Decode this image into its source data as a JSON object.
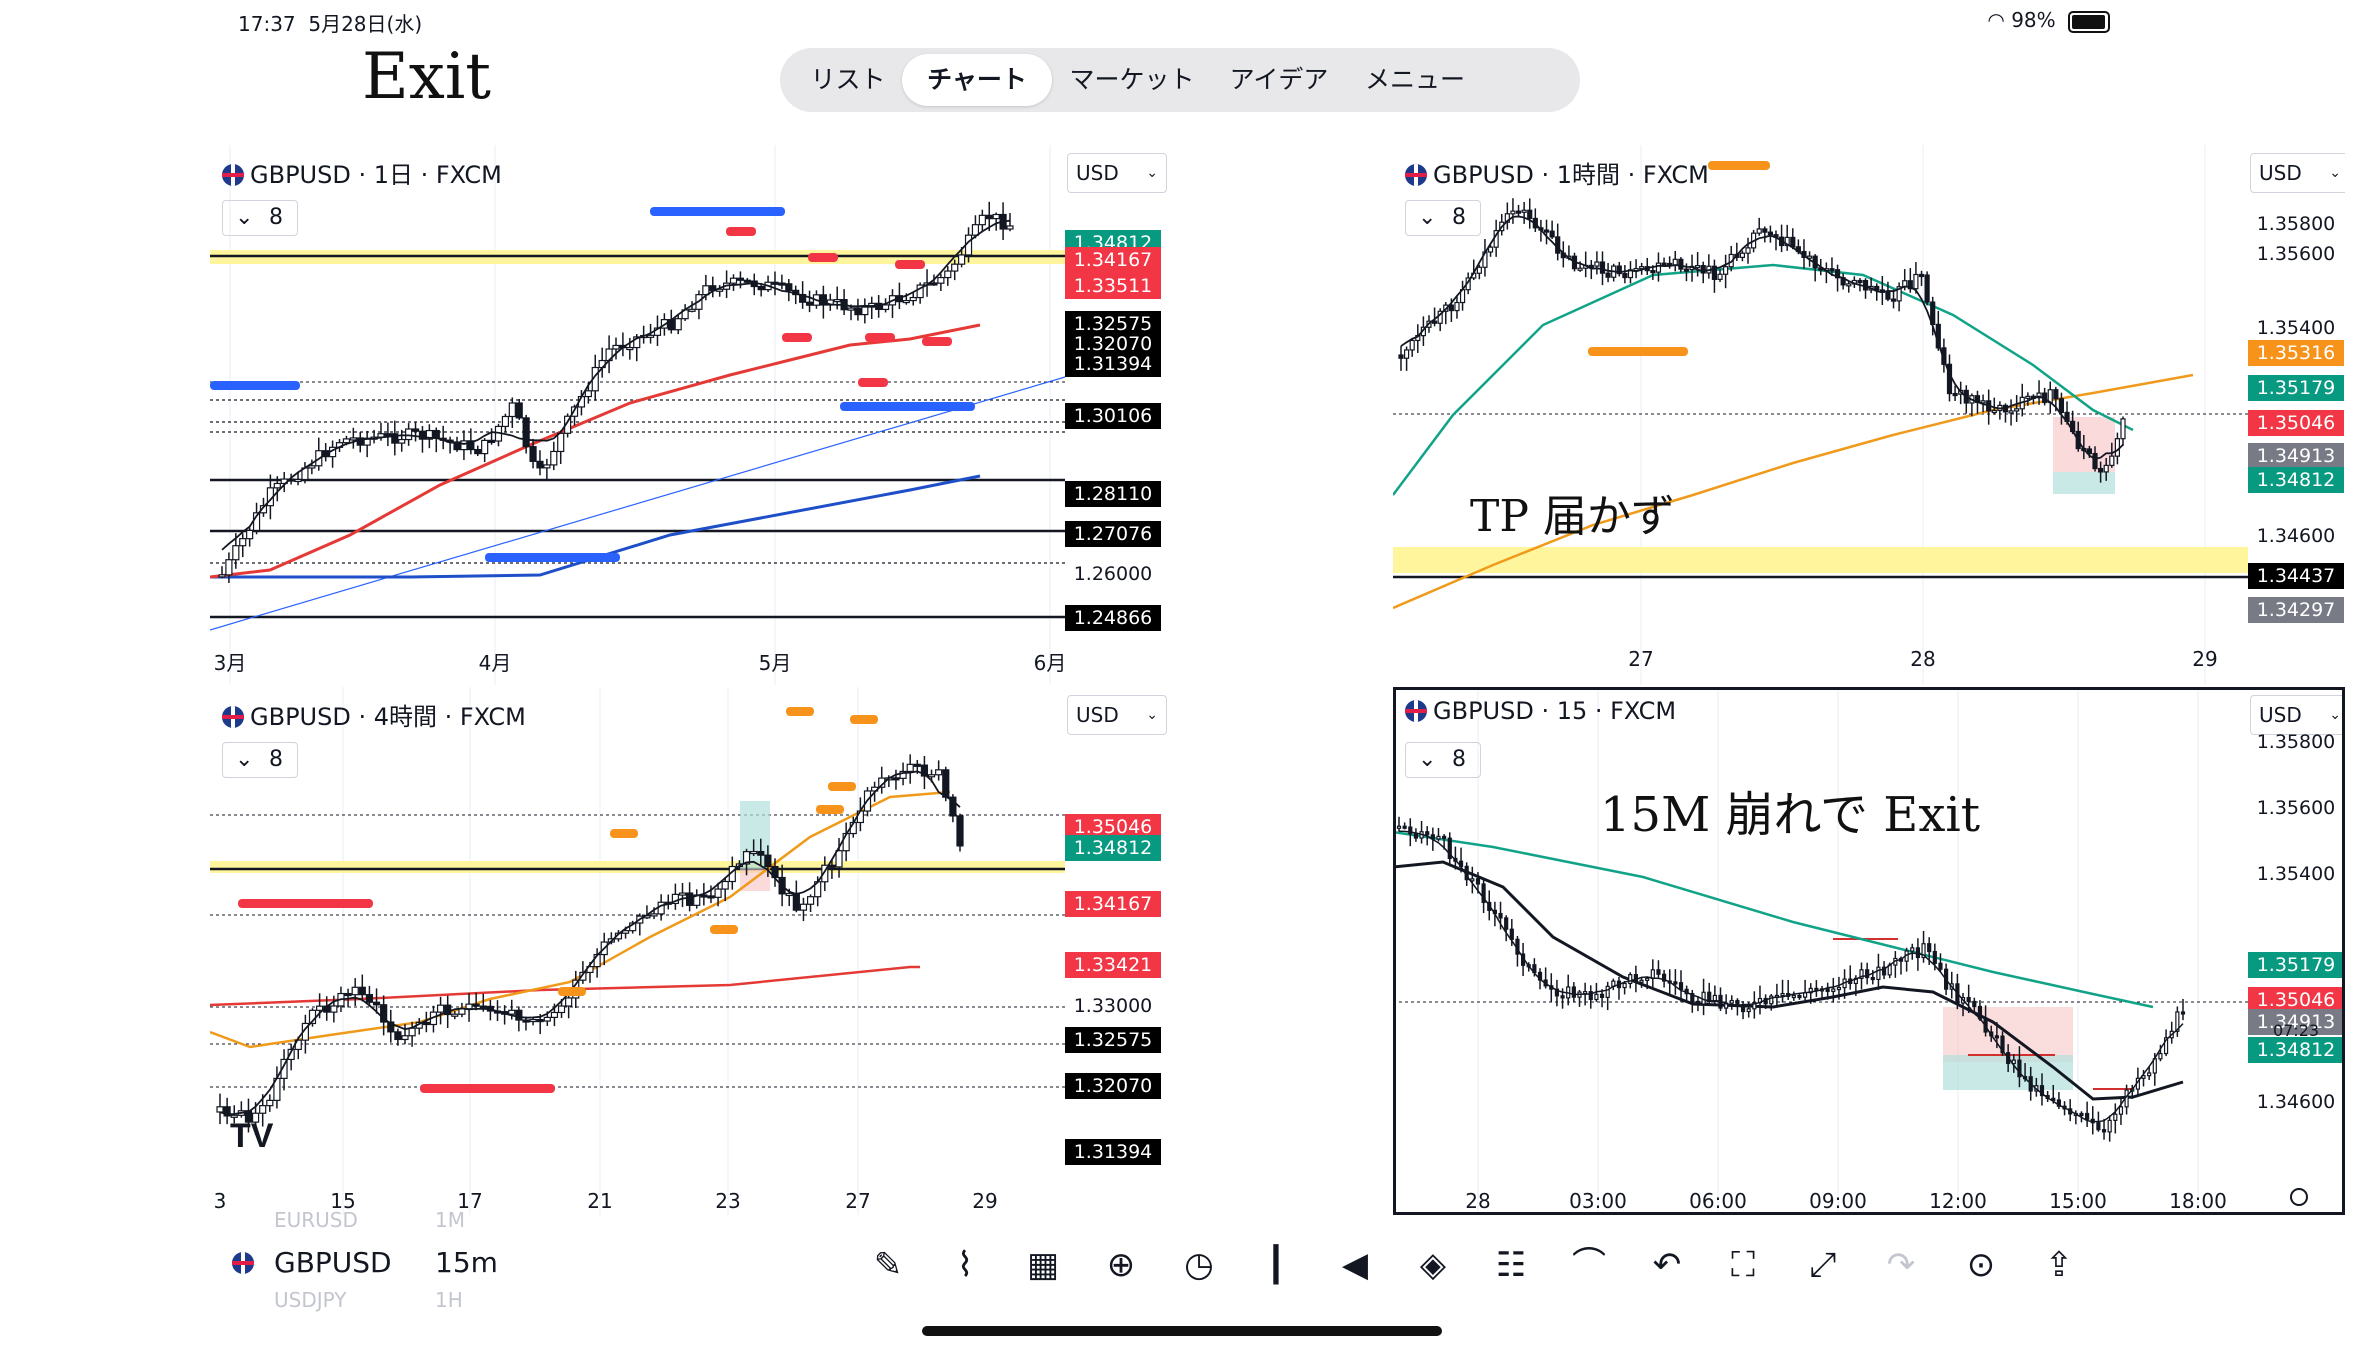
{
  "status": {
    "time": "17:37",
    "date": "5月28日(水)",
    "battery": "98%",
    "battery_level": 0.98
  },
  "notes": {
    "top_left": "Exit",
    "h1": "TP 届かず",
    "m15": "15M  崩れで  Exit"
  },
  "nav": {
    "items": [
      "リスト",
      "チャート",
      "マーケット",
      "アイデア",
      "メニュー"
    ],
    "active": "チャート"
  },
  "panes": {
    "daily": {
      "symbol": "GBPUSD",
      "title": "GBPUSD · 1日 · FXCM",
      "interval_value": "8",
      "currency": "USD",
      "price_labels": [
        {
          "text": "1.34812",
          "bg": "#089981"
        },
        {
          "text": "1.34167",
          "bg": "#f23645"
        },
        {
          "text": "1.33511",
          "bg": "#f23645"
        },
        {
          "text": "1.32575",
          "bg": "#000000"
        },
        {
          "text": "1.32070",
          "bg": "#000000"
        },
        {
          "text": "1.31394",
          "bg": "#000000"
        },
        {
          "text": "1.30106",
          "bg": "#000000"
        },
        {
          "text": "1.28110",
          "bg": "#000000"
        },
        {
          "text": "1.27076",
          "bg": "#000000"
        },
        {
          "text": "1.24866",
          "bg": "#000000"
        }
      ],
      "price_plain": [
        "1.26000"
      ],
      "x_ticks": [
        "3月",
        "4月",
        "5月",
        "6月"
      ]
    },
    "h1": {
      "symbol": "GBPUSD",
      "title": "GBPUSD · 1時間 · FXCM",
      "interval_value": "8",
      "currency": "USD",
      "price_labels": [
        {
          "text": "1.35316",
          "bg": "#f7931a"
        },
        {
          "text": "1.35179",
          "bg": "#089981"
        },
        {
          "text": "1.35046",
          "bg": "#f23645"
        },
        {
          "text": "1.34913",
          "bg": "#787b86"
        },
        {
          "text": "1.34812",
          "bg": "#089981"
        },
        {
          "text": "1.34437",
          "bg": "#000000"
        },
        {
          "text": "1.34297",
          "bg": "#787b86"
        }
      ],
      "price_plain": [
        "1.35800",
        "1.35600",
        "1.35400",
        "1.34600"
      ],
      "x_ticks": [
        "27",
        "28",
        "29"
      ]
    },
    "h4": {
      "symbol": "GBPUSD",
      "title": "GBPUSD · 4時間 · FXCM",
      "interval_value": "8",
      "currency": "USD",
      "price_labels": [
        {
          "text": "1.35046",
          "bg": "#f23645"
        },
        {
          "text": "1.34812",
          "bg": "#089981"
        },
        {
          "text": "1.34167",
          "bg": "#f23645"
        },
        {
          "text": "1.33421",
          "bg": "#f23645"
        },
        {
          "text": "1.32575",
          "bg": "#000000"
        },
        {
          "text": "1.32070",
          "bg": "#000000"
        },
        {
          "text": "1.31394",
          "bg": "#000000"
        }
      ],
      "price_plain": [
        "1.33000"
      ],
      "x_ticks": [
        "3",
        "15",
        "17",
        "21",
        "23",
        "27",
        "29"
      ]
    },
    "m15": {
      "symbol": "GBPUSD",
      "title": "GBPUSD · 15 · FXCM",
      "interval_value": "8",
      "currency": "USD",
      "price_labels": [
        {
          "text": "1.35179",
          "bg": "#089981"
        },
        {
          "text": "1.35046",
          "bg": "#f23645"
        },
        {
          "text": "1.34913",
          "bg": "#787b86"
        },
        {
          "text": "1.34812",
          "bg": "#089981"
        }
      ],
      "price_plain": [
        "1.35800",
        "1.35600",
        "1.35400",
        "1.34600"
      ],
      "countdown": "07:23",
      "x_ticks": [
        "28",
        "03:00",
        "06:00",
        "09:00",
        "12:00",
        "15:00",
        "18:00"
      ]
    }
  },
  "toolbar": {
    "symbol": "GBPUSD",
    "interval": "15m",
    "ghost_above": [
      "EURUSD",
      "1M"
    ],
    "ghost_below": [
      "USDJPY",
      "1H"
    ],
    "icons": [
      "pencil-icon",
      "indicators-icon",
      "layouts-icon",
      "add-icon",
      "alert-icon",
      "chart-type-icon",
      "replay-icon",
      "layers-icon",
      "settings-icon",
      "compare-icon",
      "undo-icon",
      "fullscreen-icon",
      "expand-icon",
      "redo-icon",
      "idea-icon",
      "share-icon"
    ]
  }
}
